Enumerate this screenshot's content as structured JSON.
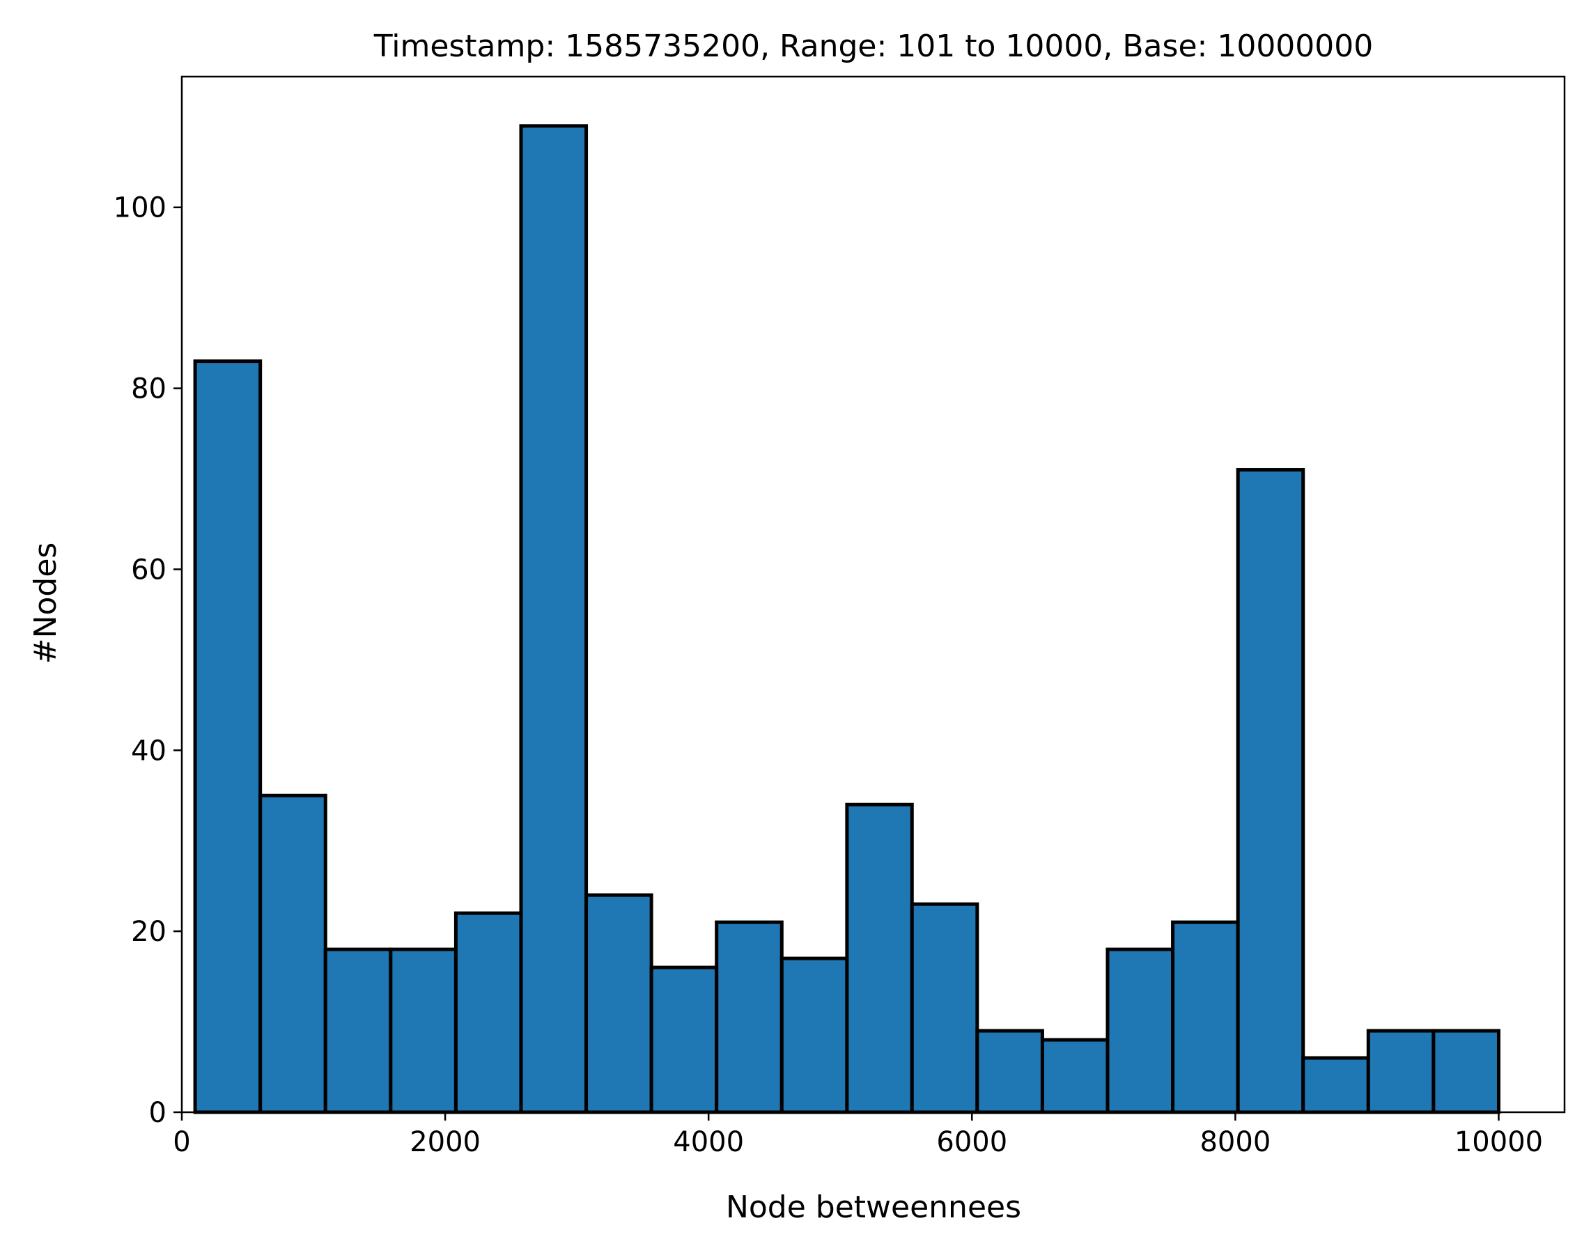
{
  "chart_data": {
    "type": "bar",
    "title": "Timestamp: 1585735200, Range: 101 to 10000, Base: 10000000",
    "xlabel": "Node betweennees",
    "ylabel": "#Nodes",
    "bin_edges": [
      101,
      596,
      1091,
      1586,
      2081,
      2576,
      3071,
      3566,
      4061,
      4556,
      5051,
      5545,
      6040,
      6535,
      7030,
      7525,
      8020,
      8515,
      9010,
      9505,
      10000
    ],
    "values": [
      83,
      35,
      18,
      18,
      22,
      109,
      24,
      16,
      21,
      17,
      34,
      23,
      9,
      8,
      18,
      21,
      71,
      6,
      9,
      9
    ],
    "xlim": [
      0,
      10500
    ],
    "ylim": [
      0,
      114.45
    ],
    "xticks": [
      0,
      2000,
      4000,
      6000,
      8000,
      10000
    ],
    "yticks": [
      0,
      20,
      40,
      60,
      80,
      100
    ],
    "xtick_labels": [
      "0",
      "2000",
      "4000",
      "6000",
      "8000",
      "10000"
    ],
    "ytick_labels": [
      "0",
      "20",
      "40",
      "60",
      "80",
      "100"
    ],
    "grid": false,
    "colors": {
      "bar_fill": "#1f77b4",
      "bar_edge": "#000000"
    }
  }
}
